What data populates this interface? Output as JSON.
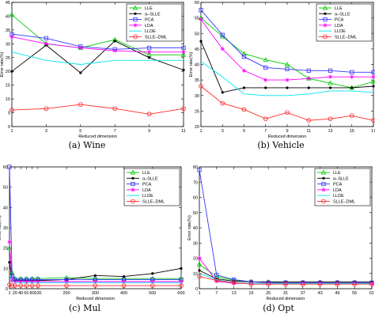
{
  "chart_data": [
    {
      "type": "line",
      "caption": "(a)  Wine",
      "xlabel": "Reduced dimension",
      "ylabel": "Error rate(%)",
      "xlim": [
        1,
        11
      ],
      "ylim": [
        0,
        45
      ],
      "xticks": [
        1,
        3,
        5,
        7,
        9,
        11
      ],
      "yticks": [
        0,
        5,
        10,
        15,
        20,
        25,
        30,
        35,
        40,
        45
      ],
      "x": [
        1,
        3,
        5,
        7,
        9,
        11
      ],
      "legend_position": "top-right",
      "series": [
        {
          "name": "LLE",
          "color": "#00cc00",
          "marker": "triangle",
          "values": [
            40.5,
            30,
            28.5,
            31.5,
            26,
            26
          ]
        },
        {
          "name": "α–SLLE",
          "color": "#000000",
          "marker": "dot",
          "values": [
            20,
            29.5,
            19.5,
            31,
            25,
            20.5
          ]
        },
        {
          "name": "PCA",
          "color": "#3333ff",
          "marker": "square",
          "values": [
            33.5,
            32,
            29,
            28,
            28.5,
            28.5
          ]
        },
        {
          "name": "LDA",
          "color": "#ff00ff",
          "marker": "star",
          "values": [
            32.5,
            30,
            28.5,
            27.5,
            27,
            27
          ]
        },
        {
          "name": "LLDE",
          "color": "#00e5ee",
          "marker": "none",
          "values": [
            27,
            24,
            22.5,
            24,
            24,
            24
          ]
        },
        {
          "name": "SLLE–DML",
          "color": "#ff2a2a",
          "marker": "circle",
          "values": [
            6,
            6.5,
            8,
            6.5,
            4.5,
            6.5
          ]
        }
      ]
    },
    {
      "type": "line",
      "caption": "(b)  Vehicle",
      "xlabel": "Reduced dimension",
      "ylabel": "Error rate(%)",
      "xlim": [
        1,
        17
      ],
      "ylim": [
        20,
        60
      ],
      "xticks": [
        1,
        3,
        5,
        7,
        9,
        11,
        13,
        15,
        17
      ],
      "yticks": [
        20,
        25,
        30,
        35,
        40,
        45,
        50,
        55,
        60
      ],
      "x": [
        1,
        3,
        5,
        7,
        9,
        11,
        13,
        15,
        17
      ],
      "legend_position": "top-right",
      "series": [
        {
          "name": "LLE",
          "color": "#00cc00",
          "marker": "triangle",
          "values": [
            55,
            49,
            43.5,
            41.5,
            40,
            35.5,
            34,
            32.5,
            34.5
          ]
        },
        {
          "name": "α–SLLE",
          "color": "#000000",
          "marker": "dot",
          "values": [
            47.5,
            31,
            32.5,
            32.5,
            32.5,
            32.5,
            32.5,
            32.5,
            33
          ]
        },
        {
          "name": "PCA",
          "color": "#3333ff",
          "marker": "square",
          "values": [
            57.5,
            49.5,
            42.5,
            39,
            38.5,
            38,
            38,
            37.5,
            37.5
          ]
        },
        {
          "name": "LDA",
          "color": "#ff00ff",
          "marker": "star",
          "values": [
            54.5,
            45,
            38,
            35,
            35,
            35.5,
            36,
            36,
            36
          ]
        },
        {
          "name": "LLDE",
          "color": "#00e5ee",
          "marker": "none",
          "values": [
            41,
            36,
            30.5,
            30,
            30,
            30.5,
            31.5,
            31.5,
            31
          ]
        },
        {
          "name": "SLLE–DML",
          "color": "#ff2a2a",
          "marker": "circle",
          "values": [
            33,
            27.5,
            25.5,
            22.5,
            24.5,
            22,
            22.5,
            23.5,
            22
          ]
        }
      ]
    },
    {
      "type": "line",
      "caption": "(c)  Mul",
      "xlabel": "Reduced dimension",
      "ylabel": "Error rate(%)",
      "xlim": [
        1,
        600
      ],
      "ylim": [
        0,
        60
      ],
      "xticks": [
        1,
        20,
        40,
        60,
        80,
        100,
        200,
        300,
        400,
        500,
        600
      ],
      "yticks": [
        0,
        10,
        20,
        30,
        40,
        50,
        60
      ],
      "x": [
        1,
        10,
        20,
        40,
        60,
        80,
        100,
        200,
        300,
        400,
        500,
        600
      ],
      "legend_position": "top-right",
      "series": [
        {
          "name": "LLE",
          "color": "#00cc00",
          "marker": "triangle",
          "values": [
            20,
            8,
            5,
            5,
            5,
            5,
            5,
            5.5,
            5,
            5,
            5,
            5
          ]
        },
        {
          "name": "α–SLLE",
          "color": "#000000",
          "marker": "dot",
          "values": [
            13,
            4,
            4,
            4,
            4,
            4,
            4,
            4.5,
            6.5,
            6,
            7.5,
            10
          ]
        },
        {
          "name": "PCA",
          "color": "#3333ff",
          "marker": "square",
          "values": [
            60,
            6,
            4.5,
            4.5,
            4.5,
            4.5,
            4.5,
            4.5,
            4.5,
            4.5,
            4.5,
            4.5
          ]
        },
        {
          "name": "LDA",
          "color": "#ff00ff",
          "marker": "star",
          "values": [
            23,
            4,
            3.5,
            3.5,
            3.5,
            3.5,
            3.5,
            3.5,
            3.5,
            3.5,
            3.5,
            3.5
          ]
        },
        {
          "name": "LLDE",
          "color": "#00e5ee",
          "marker": "none",
          "values": [
            7,
            4,
            3,
            3,
            3,
            3,
            3,
            3,
            3,
            3,
            3,
            3
          ]
        },
        {
          "name": "SLLE–DML",
          "color": "#ff2a2a",
          "marker": "circle",
          "values": [
            2,
            1.5,
            1.5,
            1.5,
            1.5,
            1.5,
            1.5,
            1.5,
            1.5,
            1.5,
            1.5,
            1.5
          ]
        }
      ]
    },
    {
      "type": "line",
      "caption": "(d)  Opt",
      "xlabel": "Reduced dimension",
      "ylabel": "Error rate(%)",
      "xlim": [
        1,
        61
      ],
      "ylim": [
        0,
        80
      ],
      "xticks": [
        1,
        7,
        13,
        19,
        25,
        31,
        37,
        43,
        49,
        55,
        61
      ],
      "yticks": [
        0,
        10,
        20,
        30,
        40,
        50,
        60,
        70,
        80
      ],
      "x": [
        1,
        7,
        13,
        19,
        25,
        31,
        37,
        43,
        49,
        55,
        61
      ],
      "legend_position": "top-right",
      "series": [
        {
          "name": "LLE",
          "color": "#00cc00",
          "marker": "triangle",
          "values": [
            16,
            8,
            5.5,
            4.5,
            4.5,
            4,
            4,
            4,
            4,
            4,
            4
          ]
        },
        {
          "name": "α–SLLE",
          "color": "#000000",
          "marker": "dot",
          "values": [
            12,
            6.5,
            5,
            4.5,
            4.5,
            4.5,
            4.5,
            4.5,
            4.5,
            4.5,
            4.5
          ]
        },
        {
          "name": "PCA",
          "color": "#3333ff",
          "marker": "square",
          "values": [
            78,
            9,
            6,
            4.5,
            4,
            4,
            4,
            4,
            4,
            4,
            4
          ]
        },
        {
          "name": "LDA",
          "color": "#ff00ff",
          "marker": "star",
          "values": [
            20,
            5,
            3.5,
            3.5,
            3.5,
            3.5,
            3.5,
            3.5,
            3.5,
            3.5,
            3.5
          ]
        },
        {
          "name": "LLDE",
          "color": "#00e5ee",
          "marker": "none",
          "values": [
            10,
            6,
            4,
            3.5,
            3.5,
            3.5,
            3.5,
            3.5,
            3.5,
            3.5,
            3.5
          ]
        },
        {
          "name": "SLLE–DML",
          "color": "#ff2a2a",
          "marker": "circle",
          "values": [
            8,
            5.5,
            4,
            3,
            3,
            3,
            3,
            3,
            3,
            3,
            3
          ]
        }
      ]
    }
  ]
}
